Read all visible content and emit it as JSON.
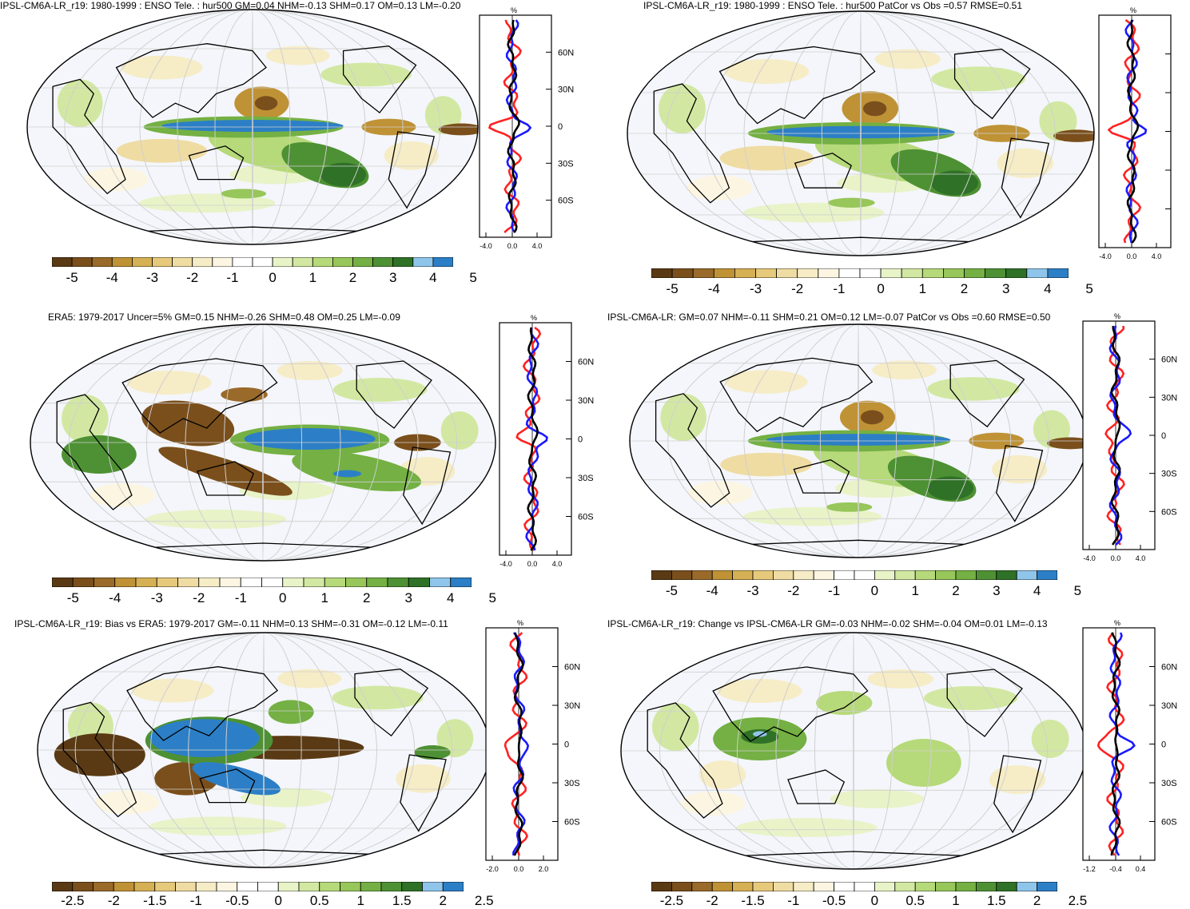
{
  "colors": {
    "scale": [
      "#5a3a14",
      "#7a4f1c",
      "#9a6a2a",
      "#bf9236",
      "#d5b054",
      "#e6c97a",
      "#efdca3",
      "#f6ecc6",
      "#fbf5e2",
      "#ffffff",
      "#ffffff",
      "#e8f3c8",
      "#d2e8a2",
      "#b6d97a",
      "#97c65a",
      "#74b043",
      "#4e9134",
      "#2f7127",
      "#8fc5ea",
      "#2c7fc6"
    ],
    "obs_line": "#000000",
    "model_line": "#ff2222",
    "bias_line": "#1a1aff"
  },
  "panels": [
    {
      "id": "model-tele",
      "title": "IPSL-CM6A-LR_r19: 1980-1999 : ENSO Tele. : hur500 GM=0.04 NHM=-0.13 SHM=0.17 OM=0.13 LM=-0.20",
      "zonal_unit": "%",
      "zonal_xticks": [
        "-4.0",
        "0.0",
        "4.0"
      ],
      "zonal_yticks": [
        "60N",
        "30N",
        "0",
        "30S",
        "60S"
      ],
      "cbar_labels": [
        "-5",
        "-4",
        "-3",
        "-2",
        "-1",
        "0",
        "1",
        "2",
        "3",
        "4",
        "5"
      ]
    },
    {
      "id": "model-tele-patcor",
      "title": "IPSL-CM6A-LR_r19: 1980-1999 : ENSO Tele. : hur500 PatCor vs Obs =0.57 RMSE=0.51",
      "zonal_unit": "%",
      "zonal_xticks": [
        "-4.0",
        "0.0",
        "4.0"
      ],
      "zonal_yticks": [],
      "cbar_labels": [
        "-5",
        "-4",
        "-3",
        "-2",
        "-1",
        "0",
        "1",
        "2",
        "3",
        "4",
        "5"
      ]
    },
    {
      "id": "era5",
      "title": "ERA5: 1979-2017 Uncer=5% GM=0.15 NHM=-0.26 SHM=0.48 OM=0.25 LM=-0.09",
      "zonal_unit": "%",
      "zonal_xticks": [
        "-4.0",
        "0.0",
        "4.0"
      ],
      "zonal_yticks": [
        "60N",
        "30N",
        "0",
        "30S",
        "60S"
      ],
      "cbar_labels": [
        "-5",
        "-4",
        "-3",
        "-2",
        "-1",
        "0",
        "1",
        "2",
        "3",
        "4",
        "5"
      ]
    },
    {
      "id": "model-ensemble",
      "title": "IPSL-CM6A-LR: GM=0.07 NHM=-0.11 SHM=0.21 OM=0.12 LM=-0.07 PatCor vs Obs =0.60 RMSE=0.50",
      "zonal_unit": "%",
      "zonal_xticks": [
        "-4.0",
        "0.0",
        "4.0"
      ],
      "zonal_yticks": [
        "60N",
        "30N",
        "0",
        "30S",
        "60S"
      ],
      "cbar_labels": [
        "-5",
        "-4",
        "-3",
        "-2",
        "-1",
        "0",
        "1",
        "2",
        "3",
        "4",
        "5"
      ]
    },
    {
      "id": "bias",
      "title": "IPSL-CM6A-LR_r19: Bias vs ERA5: 1979-2017 GM=-0.11 NHM=0.13 SHM=-0.31 OM=-0.12 LM=-0.11",
      "zonal_unit": "%",
      "zonal_xticks": [
        "-2.0",
        "0.0",
        "2.0"
      ],
      "zonal_yticks": [
        "60N",
        "30N",
        "0",
        "30S",
        "60S"
      ],
      "cbar_labels": [
        "-2.5",
        "-2",
        "-1.5",
        "-1",
        "-0.5",
        "0",
        "0.5",
        "1",
        "1.5",
        "2",
        "2.5"
      ]
    },
    {
      "id": "change",
      "title": "IPSL-CM6A-LR_r19: Change vs IPSL-CM6A-LR GM=-0.03 NHM=-0.02 SHM=-0.04 OM=0.01 LM=-0.13",
      "zonal_unit": "%",
      "zonal_xticks": [
        "-1.2",
        "-0.4",
        "0.4"
      ],
      "zonal_yticks": [
        "60N",
        "30N",
        "0",
        "30S",
        "60S"
      ],
      "cbar_labels": [
        "-2.5",
        "-2",
        "-1.5",
        "-1",
        "-0.5",
        "0",
        "0.5",
        "1",
        "1.5",
        "2",
        "2.5"
      ]
    }
  ]
}
